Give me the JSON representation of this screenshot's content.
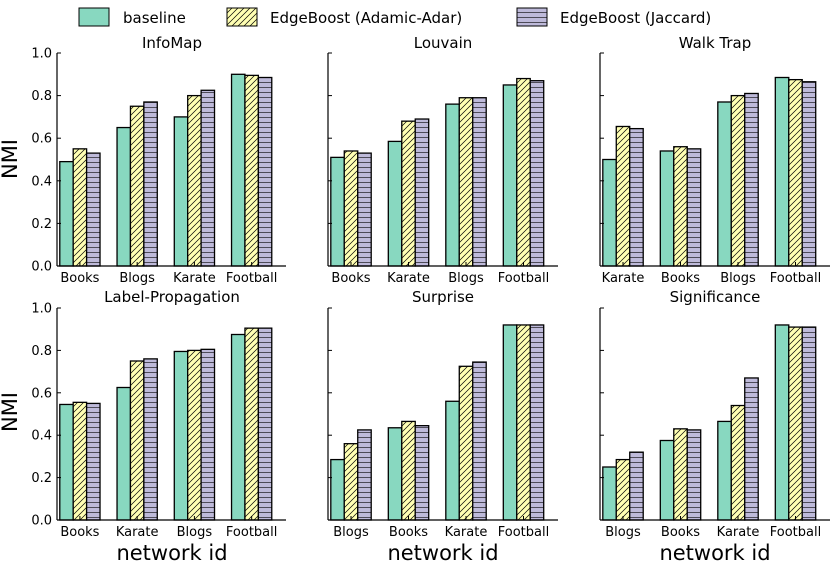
{
  "legend": {
    "items": [
      {
        "label": "baseline",
        "color": "#88d8c0",
        "pattern": "solid"
      },
      {
        "label": "EdgeBoost (Adamic-Adar)",
        "color": "#ffffb3",
        "pattern": "diagonal"
      },
      {
        "label": "EdgeBoost (Jaccard)",
        "color": "#bebada",
        "pattern": "horizontal"
      }
    ]
  },
  "colors": {
    "baseline": "#88d8c0",
    "adamic": "#ffffb3",
    "jaccard": "#bebada",
    "axis": "#000000"
  },
  "chart_data": [
    {
      "type": "bar",
      "title": "InfoMap",
      "categories": [
        "Books",
        "Blogs",
        "Karate",
        "Football"
      ],
      "series": [
        {
          "name": "baseline",
          "values": [
            0.49,
            0.65,
            0.7,
            0.9
          ]
        },
        {
          "name": "EdgeBoost (Adamic-Adar)",
          "values": [
            0.55,
            0.75,
            0.8,
            0.895
          ]
        },
        {
          "name": "EdgeBoost (Jaccard)",
          "values": [
            0.53,
            0.77,
            0.825,
            0.885
          ]
        }
      ],
      "ylabel": "NMI",
      "xlabel": "",
      "ylim": [
        0,
        1.0
      ],
      "yticks": [
        "0.0",
        "0.2",
        "0.4",
        "0.6",
        "0.8",
        "1.0"
      ]
    },
    {
      "type": "bar",
      "title": "Louvain",
      "categories": [
        "Books",
        "Karate",
        "Blogs",
        "Football"
      ],
      "series": [
        {
          "name": "baseline",
          "values": [
            0.51,
            0.585,
            0.76,
            0.85
          ]
        },
        {
          "name": "EdgeBoost (Adamic-Adar)",
          "values": [
            0.54,
            0.68,
            0.79,
            0.88
          ]
        },
        {
          "name": "EdgeBoost (Jaccard)",
          "values": [
            0.53,
            0.69,
            0.79,
            0.87
          ]
        }
      ],
      "ylabel": "",
      "xlabel": "",
      "ylim": [
        0,
        1.0
      ],
      "yticks": []
    },
    {
      "type": "bar",
      "title": "Walk Trap",
      "categories": [
        "Karate",
        "Books",
        "Blogs",
        "Football"
      ],
      "series": [
        {
          "name": "baseline",
          "values": [
            0.5,
            0.54,
            0.77,
            0.885
          ]
        },
        {
          "name": "EdgeBoost (Adamic-Adar)",
          "values": [
            0.655,
            0.56,
            0.8,
            0.875
          ]
        },
        {
          "name": "EdgeBoost (Jaccard)",
          "values": [
            0.645,
            0.55,
            0.81,
            0.865
          ]
        }
      ],
      "ylabel": "",
      "xlabel": "",
      "ylim": [
        0,
        1.0
      ],
      "yticks": []
    },
    {
      "type": "bar",
      "title": "Label-Propagation",
      "categories": [
        "Books",
        "Karate",
        "Blogs",
        "Football"
      ],
      "series": [
        {
          "name": "baseline",
          "values": [
            0.545,
            0.625,
            0.795,
            0.875
          ]
        },
        {
          "name": "EdgeBoost (Adamic-Adar)",
          "values": [
            0.555,
            0.75,
            0.8,
            0.905
          ]
        },
        {
          "name": "EdgeBoost (Jaccard)",
          "values": [
            0.55,
            0.76,
            0.805,
            0.905
          ]
        }
      ],
      "ylabel": "NMI",
      "xlabel": "network id",
      "ylim": [
        0,
        1.0
      ],
      "yticks": [
        "0.0",
        "0.2",
        "0.4",
        "0.6",
        "0.8",
        "1.0"
      ]
    },
    {
      "type": "bar",
      "title": "Surprise",
      "categories": [
        "Blogs",
        "Books",
        "Karate",
        "Football"
      ],
      "series": [
        {
          "name": "baseline",
          "values": [
            0.285,
            0.435,
            0.56,
            0.92
          ]
        },
        {
          "name": "EdgeBoost (Adamic-Adar)",
          "values": [
            0.36,
            0.465,
            0.725,
            0.92
          ]
        },
        {
          "name": "EdgeBoost (Jaccard)",
          "values": [
            0.425,
            0.445,
            0.745,
            0.92
          ]
        }
      ],
      "ylabel": "",
      "xlabel": "network id",
      "ylim": [
        0,
        1.0
      ],
      "yticks": []
    },
    {
      "type": "bar",
      "title": "Significance",
      "categories": [
        "Blogs",
        "Books",
        "Karate",
        "Football"
      ],
      "series": [
        {
          "name": "baseline",
          "values": [
            0.25,
            0.375,
            0.465,
            0.92
          ]
        },
        {
          "name": "EdgeBoost (Adamic-Adar)",
          "values": [
            0.285,
            0.43,
            0.54,
            0.91
          ]
        },
        {
          "name": "EdgeBoost (Jaccard)",
          "values": [
            0.32,
            0.425,
            0.67,
            0.91
          ]
        }
      ],
      "ylabel": "",
      "xlabel": "network id",
      "ylim": [
        0,
        1.0
      ],
      "yticks": []
    }
  ]
}
